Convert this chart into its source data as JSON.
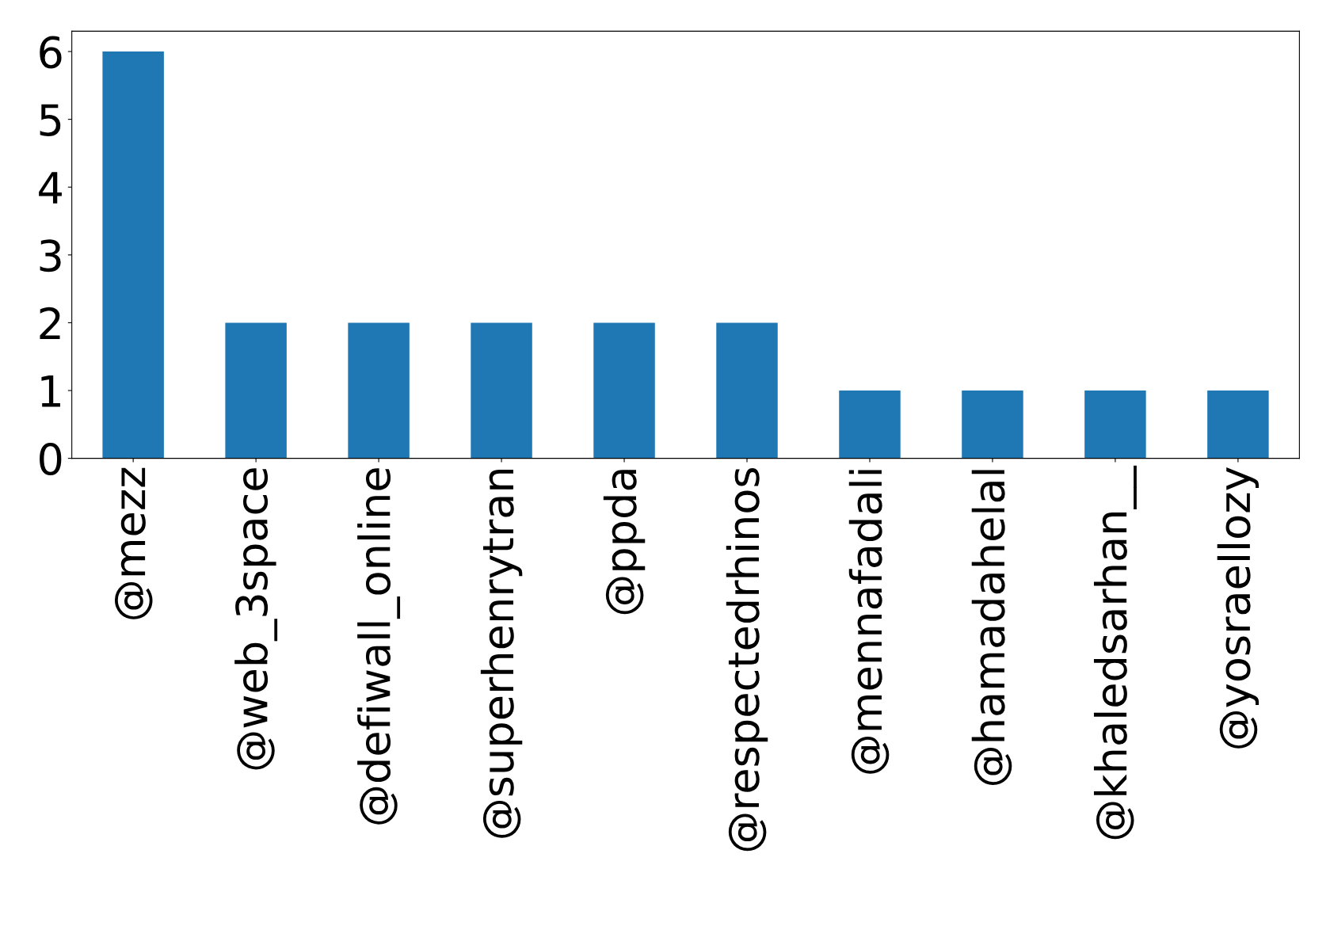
{
  "chart_data": {
    "type": "bar",
    "categories": [
      "@mezz",
      "@web_3space",
      "@defiwall_online",
      "@superhenrytran",
      "@ppda",
      "@respectedrhinos",
      "@mennafadali",
      "@hamadahelal",
      "@khaledsarhan__",
      "@yosraellozy"
    ],
    "values": [
      6,
      2,
      2,
      2,
      2,
      2,
      1,
      1,
      1,
      1
    ],
    "color": "#1f77b4",
    "ylim": [
      0,
      6.3
    ],
    "yticks": [
      0,
      1,
      2,
      3,
      4,
      5,
      6
    ],
    "grid": false,
    "legend": false
  }
}
